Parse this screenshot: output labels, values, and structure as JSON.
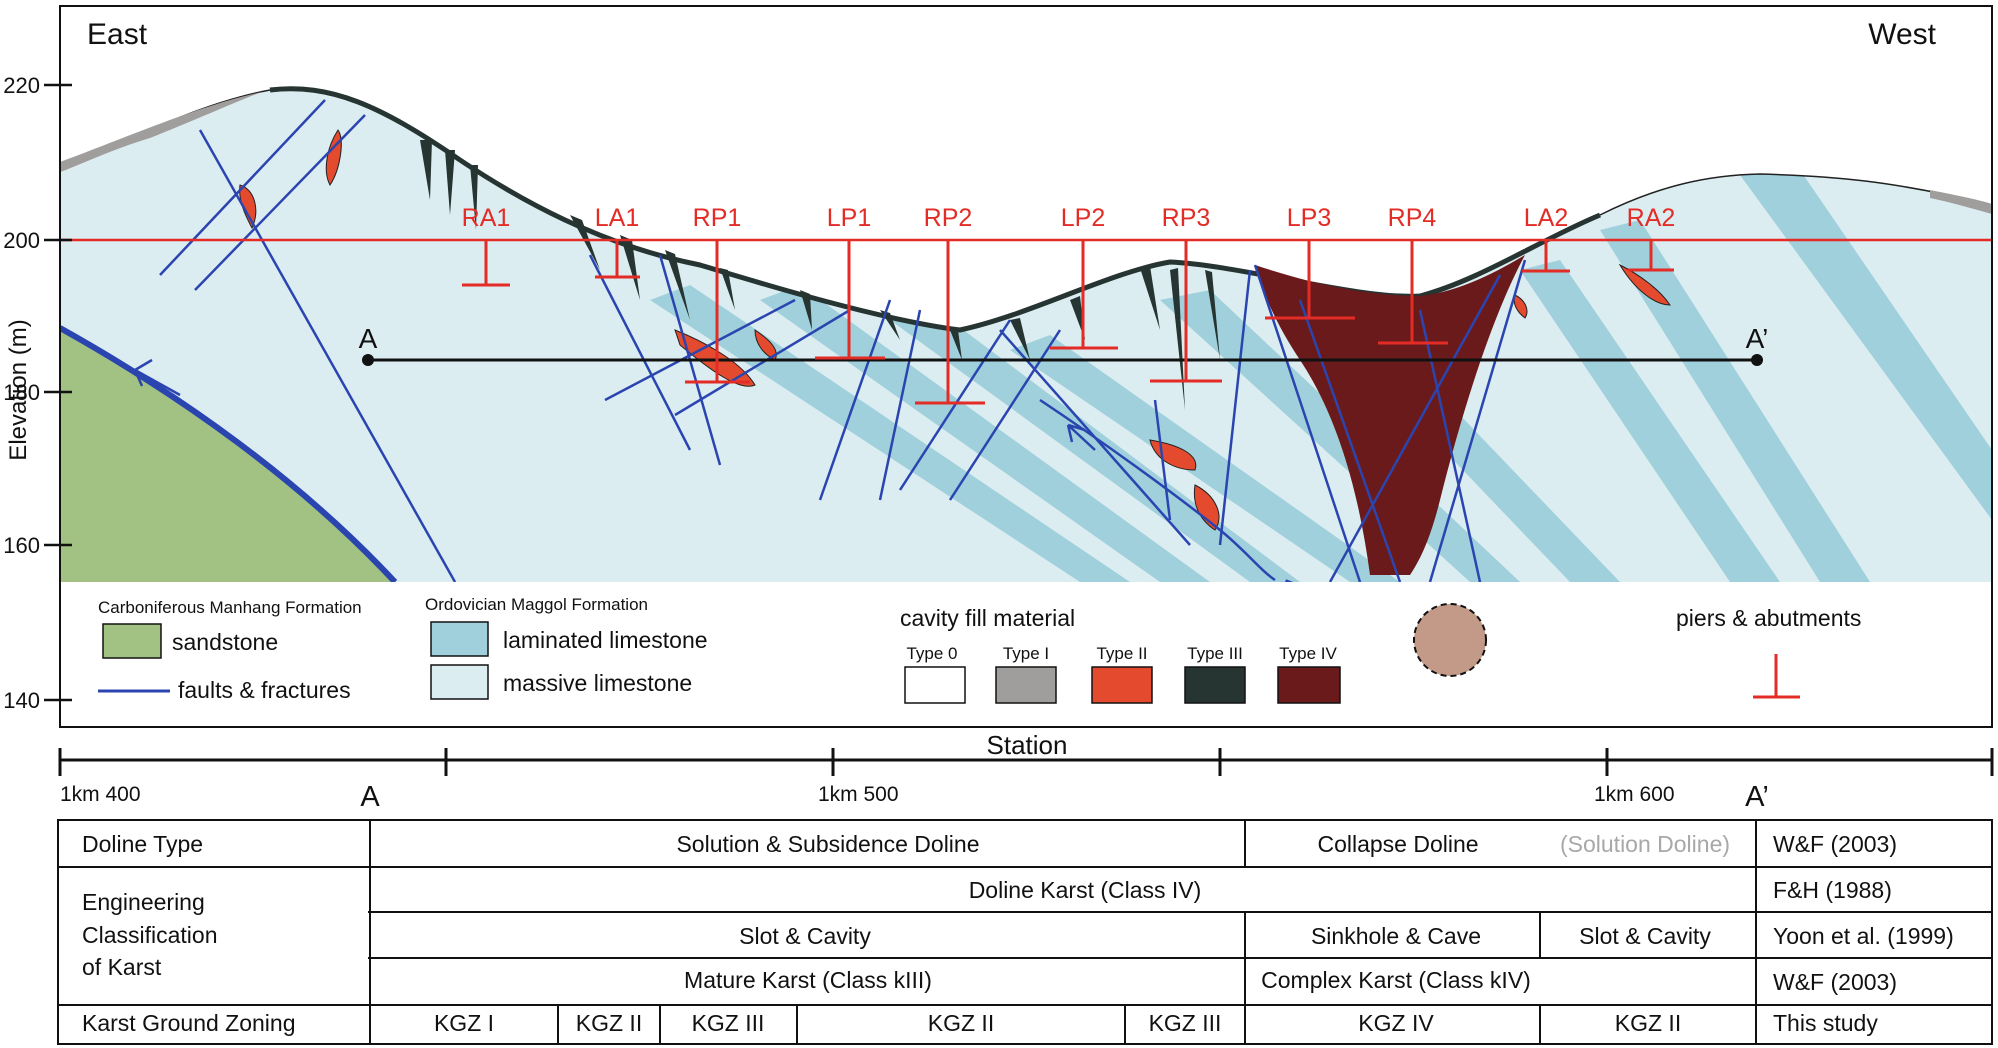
{
  "section": {
    "left_label": "East",
    "right_label": "West",
    "y_axis": {
      "label": "Elevation (m)",
      "ticks": [
        "220",
        "200",
        "180",
        "160",
        "140"
      ]
    },
    "profile_line": {
      "start": "A",
      "end": "A’"
    },
    "piers": [
      "RA1",
      "LA1",
      "RP1",
      "LP1",
      "RP2",
      "LP2",
      "RP3",
      "LP3",
      "RP4",
      "LA2",
      "RA2"
    ],
    "colors": {
      "massive": "#dcedf2",
      "laminated": "#9fd0db",
      "sandstone": "#a2c283",
      "fault": "#2b45b0",
      "pier": "#e32c25",
      "type1": "#a09d9d",
      "type2": "#e44a2e",
      "type3": "#263432",
      "type4": "#6a1a1a",
      "circle": "#c39a88"
    }
  },
  "legend": {
    "carboniferous_title": "Carboniferous Manhang Formation",
    "sandstone": "sandstone",
    "faults": "faults & fractures",
    "ordovician_title": "Ordovician Maggol Formation",
    "laminated": "laminated limestone",
    "massive": "massive limestone",
    "cavity_title": "cavity fill material",
    "types": [
      "Type 0",
      "Type I",
      "Type II",
      "Type III",
      "Type IV"
    ],
    "piers_title": "piers & abutments"
  },
  "station": {
    "title": "Station",
    "labels": [
      "1km 400",
      "1km 500",
      "1km 600"
    ],
    "a": "A",
    "a_prime": "A’"
  },
  "table": {
    "doline_type": {
      "header": "Doline Type",
      "c1": "Solution & Subsidence Doline",
      "c2": "Collapse Doline",
      "c3": "(Solution Doline)",
      "ref": "W&F (2003)"
    },
    "eng_header": [
      "Engineering",
      "Classification",
      "of Karst"
    ],
    "fh": {
      "c1": "Doline Karst (Class IV)",
      "ref": "F&H (1988)"
    },
    "yoon": {
      "c1": "Slot & Cavity",
      "c2": "Sinkhole & Cave",
      "c3": "Slot & Cavity",
      "ref": "Yoon et al. (1999)"
    },
    "wf": {
      "c1": "Mature Karst (Class kIII)",
      "c2": "Complex Karst (Class kIV)",
      "ref": "W&F (2003)"
    },
    "zoning": {
      "header": "Karst Ground Zoning",
      "zones": [
        "KGZ I",
        "KGZ II",
        "KGZ III",
        "KGZ II",
        "KGZ III",
        "KGZ IV",
        "KGZ II"
      ],
      "ref": "This study"
    }
  }
}
